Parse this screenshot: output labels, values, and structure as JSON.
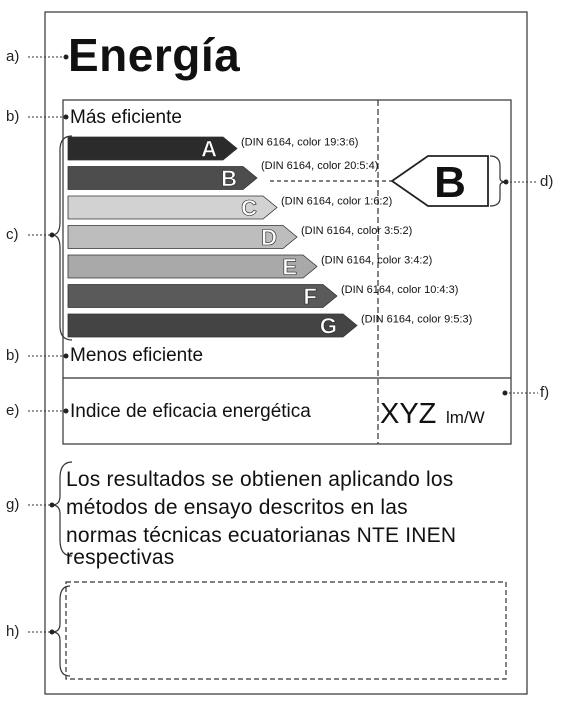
{
  "title": "Energía",
  "top_label": "Más eficiente",
  "bottom_label": "Menos eficiente",
  "index_label": "Indice de eficacia energética",
  "index_value": "XYZ",
  "index_unit": "lm/W",
  "results_lines": [
    "Los resultados se obtienen aplicando los",
    "métodos de ensayo descritos en las",
    "normas técnicas ecuatorianas NTE INEN",
    "respectivas"
  ],
  "callouts": {
    "a": "a)",
    "b_top": "b)",
    "b_bottom": "b)",
    "c": "c)",
    "d": "d)",
    "e": "e)",
    "f": "f)",
    "g": "g)",
    "h": "h)"
  },
  "selected_class": "B",
  "classes": [
    {
      "letter": "A",
      "din": "(DIN 6164, color 19:3:6)",
      "color": "#2b2b2b"
    },
    {
      "letter": "B",
      "din": "(DIN 6164, color 20:5:4)",
      "color": "#4d4d4d"
    },
    {
      "letter": "C",
      "din": "(DIN 6164, color  1:6:2)",
      "color": "#d2d2d2"
    },
    {
      "letter": "D",
      "din": "(DIN 6164, color  3:5:2)",
      "color": "#bdbdbd"
    },
    {
      "letter": "E",
      "din": "(DIN 6164, color  3:4:2)",
      "color": "#a9a9a9"
    },
    {
      "letter": "F",
      "din": "(DIN 6164, color 10:4:3)",
      "color": "#5a5a5a"
    },
    {
      "letter": "G",
      "din": "(DIN 6164, color 9:5:3)",
      "color": "#444444"
    }
  ]
}
